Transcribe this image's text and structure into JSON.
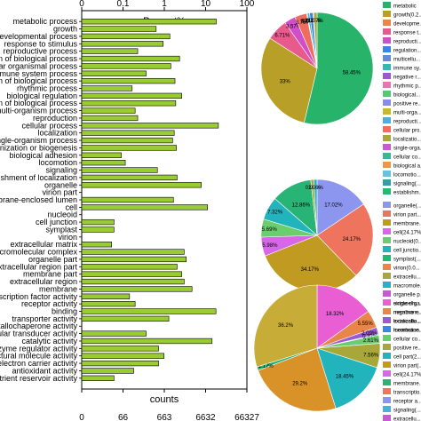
{
  "chart_data": [
    {
      "type": "bar",
      "orientation": "horizontal",
      "xscale": "log",
      "top_axis": {
        "label": "Percent%",
        "ticks": [
          "0",
          "0.1",
          "1",
          "10",
          "100"
        ]
      },
      "bottom_axis": {
        "label": "counts",
        "ticks": [
          "0",
          "66",
          "663",
          "6632",
          "66327"
        ]
      },
      "xlim_counts": [
        0,
        66327
      ],
      "grid": false,
      "bar_color": "#99cc33",
      "categories": [
        "metabolic process",
        "growth",
        "developmental process",
        "response to stimulus",
        "reproductive process",
        "regulation of biological process",
        "multicellular organismal process",
        "immune system process",
        "negative regulation of biological process",
        "rhythmic process",
        "biological regulation",
        "positive regulation of biological process",
        "multi-organism process",
        "reproduction",
        "cellular process",
        "localization",
        "single-organism process",
        "cellular component organization or biogenesis",
        "biological adhesion",
        "locomotion",
        "signaling",
        "establishment of localization",
        "organelle",
        "virion part",
        "membrane-enclosed lumen",
        "cell",
        "nucleoid",
        "cell junction",
        "symplast",
        "virion",
        "extracellular matrix",
        "macromolecular complex",
        "organelle part",
        "extracellular region part",
        "membrane part",
        "extracellular region",
        "membrane",
        "transcription factor activity",
        "receptor activity",
        "binding",
        "transporter activity",
        "metallochaperone activity",
        "molecular transducer activity",
        "catalytic activity",
        "enzyme regulator activity",
        "structural molecule activity",
        "electron carrier activity",
        "antioxidant activity",
        "nutrient reservoir activity"
      ],
      "values": [
        12000,
        420,
        900,
        620,
        150,
        1550,
        950,
        240,
        1200,
        110,
        1750,
        1250,
        130,
        150,
        13500,
        1150,
        1050,
        1300,
        60,
        75,
        450,
        1350,
        5200,
        4,
        1100,
        7400,
        3,
        40,
        40,
        5,
        35,
        2000,
        2250,
        1350,
        1750,
        2000,
        3100,
        95,
        130,
        11800,
        850,
        4,
        240,
        9500,
        480,
        650,
        480,
        120,
        40
      ]
    },
    {
      "type": "pie",
      "slice_labels": [
        "58.45%",
        "33%",
        "6.71%",
        "3.57%",
        "3.76%",
        "0.24%",
        "0.68%",
        "1.05%",
        "0.24%",
        "1.07%"
      ],
      "values": [
        58.45,
        33.0,
        6.71,
        3.57,
        3.76,
        0.24,
        0.68,
        1.05,
        0.24,
        1.07
      ],
      "colors": [
        "#27b36a",
        "#b8a028",
        "#e85a8c",
        "#d24ec8",
        "#ee6d5e",
        "#7aa0e8",
        "#35b8b0",
        "#3a86e0",
        "#9a5ad8",
        "#a8a83a"
      ],
      "legend": {
        "placement": "right",
        "entries": [
          "metabolic",
          "growth(0.2...",
          "developme...",
          "response t...",
          "reproducti...",
          "regulation...",
          "multicellu...",
          "immune sy...",
          "negative r...",
          "rhythmic p...",
          "biological...",
          "positive re...",
          "multi-orga...",
          "reproducti...",
          "cellular pro...",
          "localizatio...",
          "single-orga...",
          "cellular co...",
          "biological a...",
          "locomotio...",
          "signaling(...",
          "establishm..."
        ],
        "colors": [
          "#27b36a",
          "#b8a028",
          "#e8864a",
          "#e85a8c",
          "#d24ec8",
          "#3a86e0",
          "#6a8ad8",
          "#35b8b0",
          "#9a5ad8",
          "#e07ab0",
          "#58c870",
          "#8a8ae8",
          "#c8b830",
          "#4ab0d8",
          "#ee6d5e",
          "#a8a83a",
          "#c85ad8",
          "#3ab890",
          "#e89a4a",
          "#6ac0e0",
          "#30a0a8",
          "#28b870"
        ]
      }
    },
    {
      "type": "pie",
      "slice_labels": [
        "17.02%",
        "24.17%",
        "34.17%",
        "5.98%",
        "5.69%",
        "7.32%",
        "12.86%",
        "0.92%",
        "1.06%"
      ],
      "values": [
        17.02,
        24.17,
        34.17,
        5.98,
        5.69,
        7.32,
        12.86,
        0.92,
        1.06
      ],
      "colors": [
        "#8c96ee",
        "#ee745e",
        "#c19a22",
        "#d866e8",
        "#6ace6e",
        "#22b4bc",
        "#27b474",
        "#a8a83a",
        "#28b0c8"
      ],
      "legend": {
        "placement": "right",
        "entries": [
          "organelle(...",
          "virion part...",
          "membrane...",
          "cell(24.17%",
          "nucleoid(0...",
          "cell junctio...",
          "symplast(...",
          "virion(0.0...",
          "extracellu...",
          "macromole...",
          "organelle p...",
          "extracellu...",
          "membrane...",
          "extracellu...",
          "membrane..."
        ],
        "colors": [
          "#8c96ee",
          "#ee745e",
          "#c19a22",
          "#d866e8",
          "#6ace6e",
          "#22b4bc",
          "#27b474",
          "#e8864a",
          "#a8a83a",
          "#28b0c8",
          "#c85ad8",
          "#3ab890",
          "#e85a8c",
          "#4ab0d8",
          "#27b060"
        ]
      }
    },
    {
      "type": "pie",
      "slice_labels": [
        "18.32%",
        "5.55%",
        "2.09%",
        "0.32%",
        "2.61%",
        "7.56%",
        "18.45%",
        "29.2%",
        "1.17%",
        "36.2%"
      ],
      "values": [
        18.32,
        5.55,
        2.09,
        0.32,
        2.61,
        7.56,
        18.45,
        29.2,
        1.17,
        36.2
      ],
      "colors": [
        "#ea5ed4",
        "#e8864a",
        "#9a5ad8",
        "#3a86e0",
        "#6ace6e",
        "#a8a83a",
        "#22b4bc",
        "#d99228",
        "#27b474",
        "#c8ac38"
      ],
      "legend": {
        "placement": "right",
        "entries": [
          "single-orga...",
          "negative r...",
          "localizatio...",
          "locomotion...",
          "cellular co...",
          "positive re...",
          "cell part(2...",
          "virion part(...",
          "cell(24.17%",
          "membrane...",
          "transcriptio...",
          "receptor a...",
          "signaling(...",
          "extracellu...",
          "membrane..."
        ],
        "colors": [
          "#ea5ed4",
          "#e8864a",
          "#9a5ad8",
          "#3a86e0",
          "#6ace6e",
          "#a8a83a",
          "#22b4bc",
          "#c19a22",
          "#d866e8",
          "#27b474",
          "#ee745e",
          "#8c96ee",
          "#4ab0d8",
          "#c85ad8",
          "#27b060"
        ]
      }
    }
  ]
}
